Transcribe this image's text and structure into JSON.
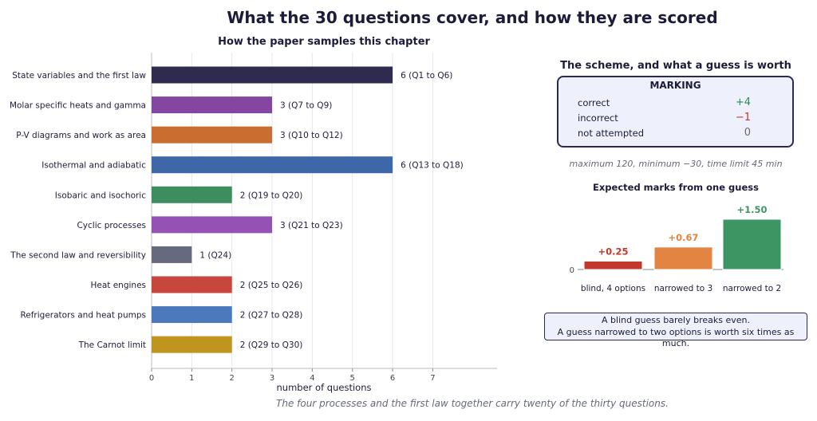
{
  "title": "What the 30 questions cover, and how they are scored",
  "footer": "The four processes and the first law together carry twenty of the thirty questions.",
  "chart_data": [
    {
      "type": "bar",
      "orientation": "horizontal",
      "title": "How the paper samples this chapter",
      "xlabel": "number of questions",
      "ylabel": "",
      "xlim": [
        0,
        8.6
      ],
      "xticks": [
        0,
        1,
        2,
        3,
        4,
        5,
        6,
        7
      ],
      "grid": true,
      "categories": [
        "State variables and the first law",
        "Molar specific heats and gamma",
        "P-V diagrams and work as area",
        "Isothermal and adiabatic",
        "Isobaric and isochoric",
        "Cyclic processes",
        "The second law and reversibility",
        "Heat engines",
        "Refrigerators and heat pumps",
        "The Carnot limit"
      ],
      "values": [
        6,
        3,
        3,
        6,
        2,
        3,
        1,
        2,
        2,
        2
      ],
      "ranges": [
        "(Q1 to Q6)",
        "(Q7 to Q9)",
        "(Q10 to Q12)",
        "(Q13 to Q18)",
        "(Q19 to Q20)",
        "(Q21 to Q23)",
        "(Q24)",
        "(Q25 to Q26)",
        "(Q27 to Q28)",
        "(Q29 to Q30)"
      ],
      "colors": [
        "#2e2b4f",
        "#8446a0",
        "#c96d31",
        "#3d67a8",
        "#3d8e5e",
        "#9552b5",
        "#666a7e",
        "#c8473c",
        "#4b79bc",
        "#bf951f"
      ]
    },
    {
      "type": "bar",
      "title": "Expected marks from one guess",
      "categories": [
        "blind, 4 options",
        "narrowed to 3",
        "narrowed to 2"
      ],
      "values": [
        0.25,
        0.67,
        1.5
      ],
      "value_labels": [
        "+0.25",
        "+0.67",
        "+1.50"
      ],
      "colors": [
        "#c0392b",
        "#e38443",
        "#3c9563"
      ],
      "yticks": [
        "0"
      ],
      "ylim": [
        0,
        1.5
      ]
    }
  ],
  "scheme": {
    "title": "The scheme, and what a guess is worth",
    "box_title": "MARKING",
    "rows": [
      {
        "label": "correct",
        "value": "+4",
        "color": "#2e8b57"
      },
      {
        "label": "incorrect",
        "value": "−1",
        "color": "#c0392b"
      },
      {
        "label": "not attempted",
        "value": "0",
        "color": "#666a78"
      }
    ],
    "limits": "maximum 120,   minimum −30,   time limit 45 min"
  },
  "callout": {
    "line1": "A blind guess barely breaks even.",
    "line2": "A guess narrowed to two options is worth six times as much."
  }
}
